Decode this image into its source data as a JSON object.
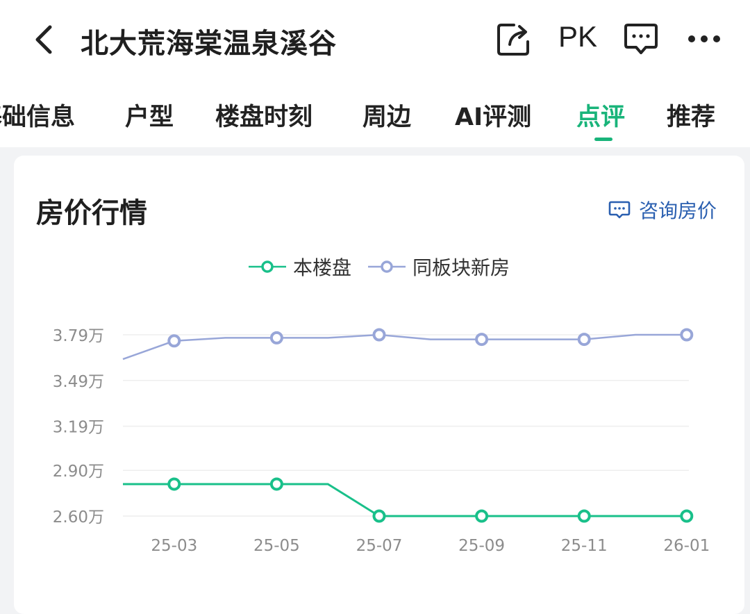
{
  "header": {
    "title": "北大荒海棠温泉溪谷",
    "pk_label": "PK"
  },
  "tabs": [
    {
      "label": "基础信息"
    },
    {
      "label": "户型"
    },
    {
      "label": "楼盘时刻"
    },
    {
      "label": "周边"
    },
    {
      "label": "AI评测"
    },
    {
      "label": "点评",
      "active": true
    },
    {
      "label": "推荐"
    }
  ],
  "card": {
    "title": "房价行情",
    "consult_label": "咨询房价"
  },
  "colors": {
    "accent": "#19b47a",
    "series_this": "#19c08a",
    "series_area": "#98a6d8",
    "link": "#2a5fb0"
  },
  "chart_data": {
    "type": "line",
    "x": [
      "25-02",
      "25-03",
      "25-04",
      "25-05",
      "25-06",
      "25-07",
      "25-08",
      "25-09",
      "25-10",
      "25-11",
      "25-12",
      "26-01"
    ],
    "x_tick_labels": [
      "25-03",
      "25-05",
      "25-07",
      "25-09",
      "25-11",
      "26-01"
    ],
    "y_tick_labels": [
      "3.79万",
      "3.49万",
      "3.19万",
      "2.90万",
      "2.60万"
    ],
    "y_ticks": [
      3.79,
      3.49,
      3.19,
      2.9,
      2.6
    ],
    "ylim": [
      2.6,
      3.79
    ],
    "grid": true,
    "legend_position": "top-center",
    "series": [
      {
        "name": "本楼盘",
        "values": [
          2.81,
          2.81,
          2.81,
          2.81,
          2.81,
          2.6,
          2.6,
          2.6,
          2.6,
          2.6,
          2.6,
          2.6
        ],
        "markers": [
          "25-03",
          "25-05",
          "25-07",
          "25-09",
          "25-11",
          "26-01"
        ]
      },
      {
        "name": "同板块新房",
        "values": [
          3.63,
          3.75,
          3.77,
          3.77,
          3.77,
          3.79,
          3.76,
          3.76,
          3.76,
          3.76,
          3.79,
          3.79
        ],
        "markers": [
          "25-03",
          "25-05",
          "25-07",
          "25-09",
          "25-11",
          "26-01"
        ]
      }
    ]
  }
}
